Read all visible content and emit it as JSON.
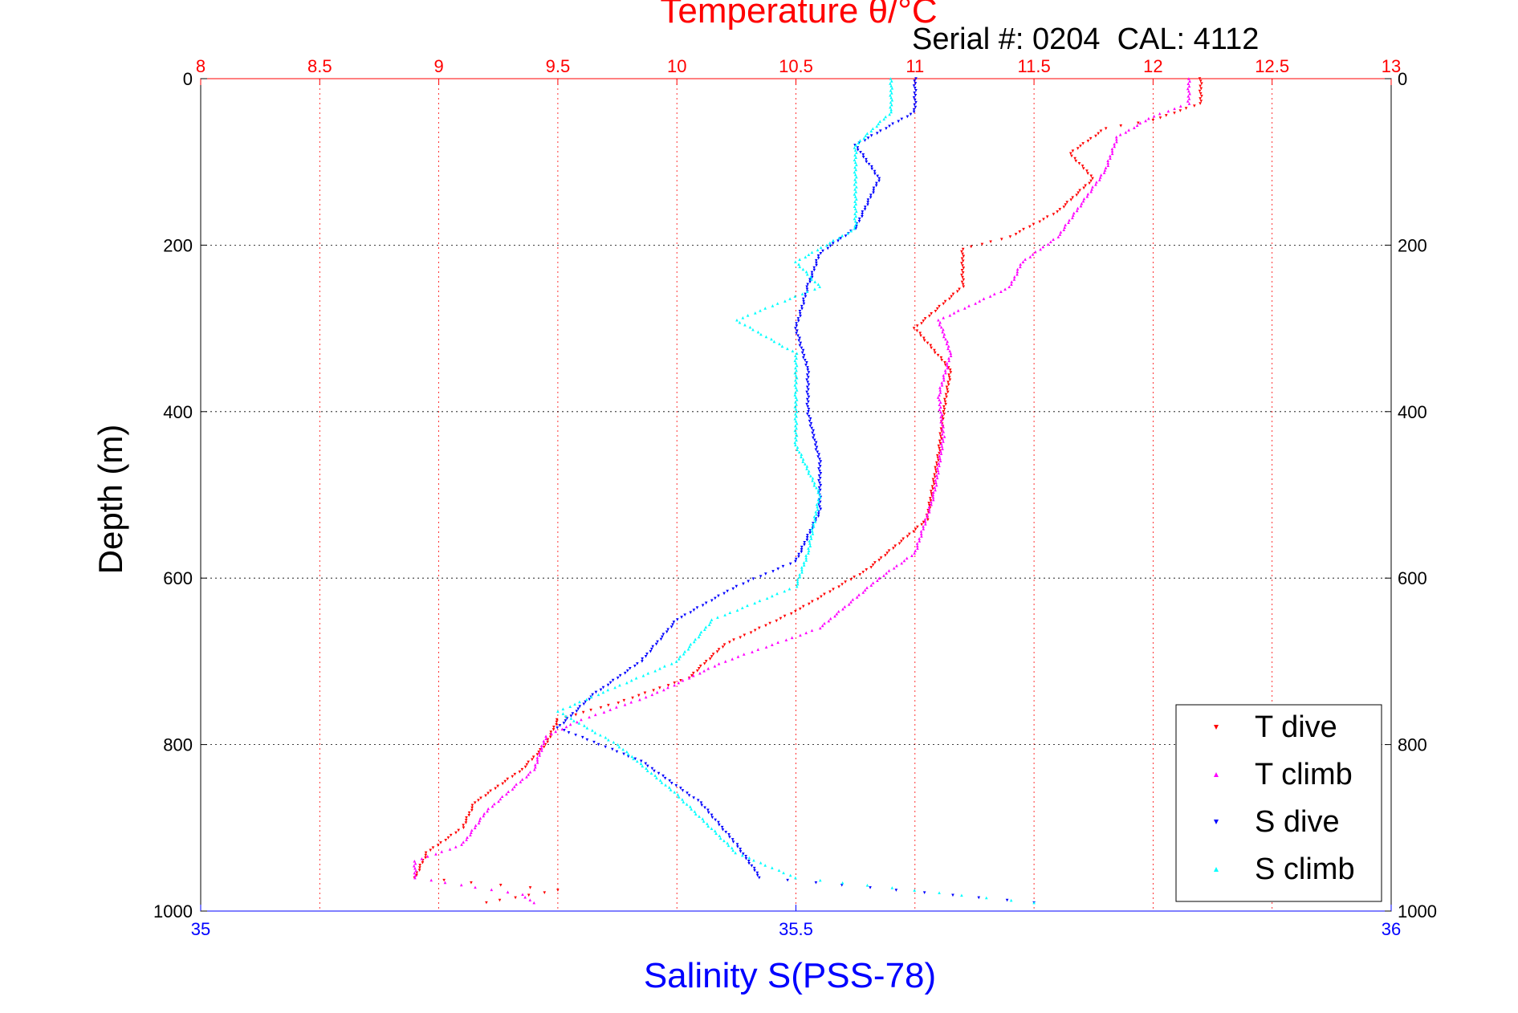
{
  "chart_data": {
    "type": "scatter",
    "title": "Temperature θ/°C",
    "subtitle": "Serial #: 0204  CAL: 4112",
    "ylabel": "Depth (m)",
    "xlabel_bottom": "Salinity S(PSS-78)",
    "xlabel_top": "Temperature θ/°C",
    "y_axis": {
      "range": [
        0,
        1000
      ],
      "inverted": true,
      "ticks": [
        "0",
        "200",
        "400",
        "600",
        "800",
        "1000"
      ]
    },
    "x_axis_top": {
      "range": [
        8,
        13
      ],
      "ticks": [
        "8",
        "8.5",
        "9",
        "9.5",
        "10",
        "10.5",
        "11",
        "11.5",
        "12",
        "12.5",
        "13"
      ]
    },
    "x_axis_bottom": {
      "range": [
        35,
        36
      ],
      "ticks": [
        "35",
        "35.5",
        "36"
      ]
    },
    "grid": true,
    "legend_position": "bottom-right",
    "colors": {
      "top_axis": "#ff0000",
      "bottom_axis": "#0000ff",
      "axis_black": "#000000"
    },
    "series": [
      {
        "name": "T dive",
        "axis": "top",
        "color": "#ff0000",
        "marker": "triangle-down",
        "points": [
          [
            12.2,
            0
          ],
          [
            12.2,
            30
          ],
          [
            12.0,
            50
          ],
          [
            11.8,
            60
          ],
          [
            11.65,
            90
          ],
          [
            11.75,
            120
          ],
          [
            11.6,
            160
          ],
          [
            11.4,
            190
          ],
          [
            11.2,
            205
          ],
          [
            11.2,
            250
          ],
          [
            11.0,
            300
          ],
          [
            11.15,
            350
          ],
          [
            11.12,
            400
          ],
          [
            11.1,
            450
          ],
          [
            11.05,
            530
          ],
          [
            10.8,
            590
          ],
          [
            10.5,
            640
          ],
          [
            10.2,
            680
          ],
          [
            10.05,
            720
          ],
          [
            9.75,
            750
          ],
          [
            9.5,
            770
          ],
          [
            9.45,
            800
          ],
          [
            9.35,
            830
          ],
          [
            9.15,
            870
          ],
          [
            9.1,
            900
          ],
          [
            8.95,
            930
          ],
          [
            8.9,
            960
          ],
          [
            9.5,
            975
          ],
          [
            9.2,
            990
          ]
        ]
      },
      {
        "name": "T climb",
        "axis": "top",
        "color": "#ff00ff",
        "marker": "triangle-up",
        "points": [
          [
            12.15,
            0
          ],
          [
            12.15,
            30
          ],
          [
            12.0,
            45
          ],
          [
            11.85,
            70
          ],
          [
            11.8,
            110
          ],
          [
            11.7,
            150
          ],
          [
            11.6,
            190
          ],
          [
            11.45,
            220
          ],
          [
            11.4,
            250
          ],
          [
            11.1,
            290
          ],
          [
            11.15,
            330
          ],
          [
            11.1,
            380
          ],
          [
            11.12,
            430
          ],
          [
            11.08,
            500
          ],
          [
            11.0,
            570
          ],
          [
            10.85,
            600
          ],
          [
            10.6,
            660
          ],
          [
            10.2,
            700
          ],
          [
            9.9,
            740
          ],
          [
            9.6,
            770
          ],
          [
            9.45,
            790
          ],
          [
            9.4,
            830
          ],
          [
            9.2,
            880
          ],
          [
            9.1,
            920
          ],
          [
            8.9,
            940
          ],
          [
            8.9,
            960
          ],
          [
            9.35,
            980
          ],
          [
            9.4,
            990
          ]
        ]
      },
      {
        "name": "S dive",
        "axis": "bottom",
        "color": "#0000ff",
        "marker": "triangle-down",
        "points": [
          [
            35.6,
            0
          ],
          [
            35.6,
            40
          ],
          [
            35.55,
            80
          ],
          [
            35.57,
            120
          ],
          [
            35.55,
            180
          ],
          [
            35.52,
            210
          ],
          [
            35.51,
            250
          ],
          [
            35.5,
            300
          ],
          [
            35.51,
            350
          ],
          [
            35.51,
            400
          ],
          [
            35.52,
            460
          ],
          [
            35.52,
            520
          ],
          [
            35.5,
            580
          ],
          [
            35.45,
            610
          ],
          [
            35.4,
            650
          ],
          [
            35.37,
            700
          ],
          [
            35.33,
            740
          ],
          [
            35.3,
            780
          ],
          [
            35.37,
            820
          ],
          [
            35.42,
            870
          ],
          [
            35.45,
            920
          ],
          [
            35.47,
            960
          ],
          [
            35.7,
            990
          ]
        ]
      },
      {
        "name": "S climb",
        "axis": "bottom",
        "color": "#00ffff",
        "marker": "triangle-up",
        "points": [
          [
            35.58,
            0
          ],
          [
            35.58,
            40
          ],
          [
            35.55,
            80
          ],
          [
            35.55,
            130
          ],
          [
            35.55,
            180
          ],
          [
            35.5,
            220
          ],
          [
            35.52,
            250
          ],
          [
            35.45,
            290
          ],
          [
            35.5,
            330
          ],
          [
            35.5,
            380
          ],
          [
            35.5,
            440
          ],
          [
            35.52,
            500
          ],
          [
            35.51,
            570
          ],
          [
            35.5,
            610
          ],
          [
            35.43,
            650
          ],
          [
            35.4,
            700
          ],
          [
            35.3,
            760
          ],
          [
            35.35,
            800
          ],
          [
            35.4,
            860
          ],
          [
            35.45,
            930
          ],
          [
            35.5,
            960
          ],
          [
            35.7,
            990
          ]
        ]
      }
    ]
  }
}
